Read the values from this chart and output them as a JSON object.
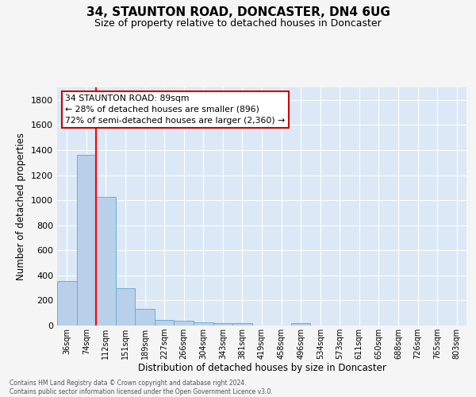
{
  "title": "34, STAUNTON ROAD, DONCASTER, DN4 6UG",
  "subtitle": "Size of property relative to detached houses in Doncaster",
  "xlabel": "Distribution of detached houses by size in Doncaster",
  "ylabel": "Number of detached properties",
  "bar_labels": [
    "36sqm",
    "74sqm",
    "112sqm",
    "151sqm",
    "189sqm",
    "227sqm",
    "266sqm",
    "304sqm",
    "343sqm",
    "381sqm",
    "419sqm",
    "458sqm",
    "496sqm",
    "534sqm",
    "573sqm",
    "611sqm",
    "650sqm",
    "688sqm",
    "726sqm",
    "765sqm",
    "803sqm"
  ],
  "bar_values": [
    355,
    1360,
    1025,
    295,
    130,
    42,
    38,
    28,
    20,
    18,
    0,
    0,
    20,
    0,
    0,
    0,
    0,
    0,
    0,
    0,
    0
  ],
  "bar_color": "#b8d0ea",
  "bar_edge_color": "#6aaed6",
  "bg_color": "#dce8f5",
  "grid_color": "#ffffff",
  "red_line_x": 1.5,
  "annotation_text": "34 STAUNTON ROAD: 89sqm\n← 28% of detached houses are smaller (896)\n72% of semi-detached houses are larger (2,360) →",
  "annotation_box_color": "#ffffff",
  "annotation_box_edge": "#cc0000",
  "footer": "Contains HM Land Registry data © Crown copyright and database right 2024.\nContains public sector information licensed under the Open Government Licence v3.0.",
  "ylim": [
    0,
    1900
  ],
  "yticks": [
    0,
    200,
    400,
    600,
    800,
    1000,
    1200,
    1400,
    1600,
    1800
  ]
}
